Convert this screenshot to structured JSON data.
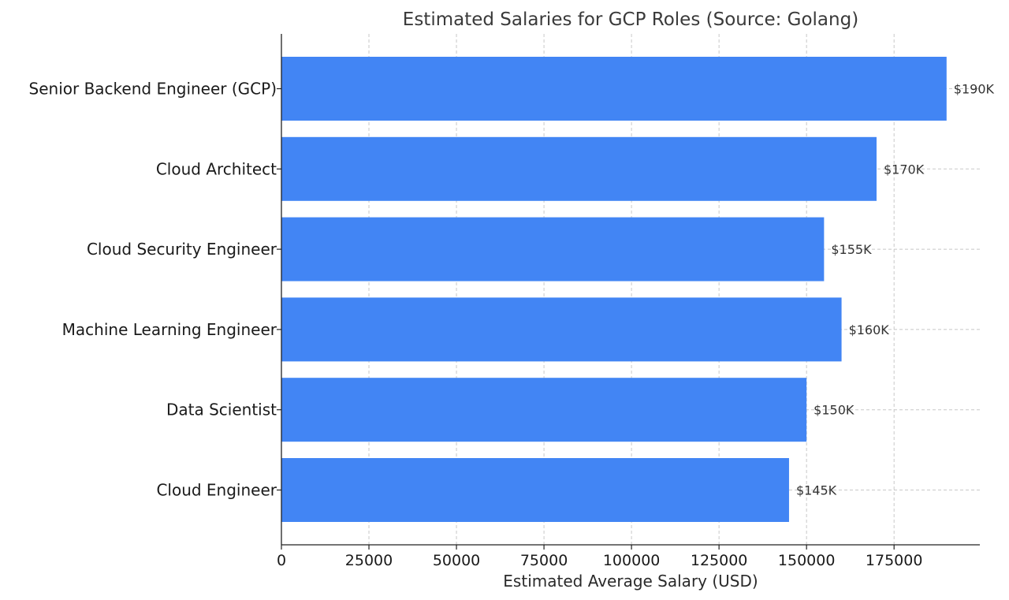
{
  "chart_data": {
    "type": "bar",
    "orientation": "horizontal",
    "title": "Estimated Salaries for GCP Roles (Source: Golang)",
    "xlabel": "Estimated Average Salary (USD)",
    "ylabel": "",
    "xlim": [
      0,
      199500
    ],
    "xticks": [
      0,
      25000,
      50000,
      75000,
      100000,
      125000,
      150000,
      175000
    ],
    "xtick_labels": [
      "0",
      "25000",
      "50000",
      "75000",
      "100000",
      "125000",
      "150000",
      "175000"
    ],
    "categories": [
      "Senior Backend Engineer (GCP)",
      "Cloud Architect",
      "Cloud Security Engineer",
      "Machine Learning Engineer",
      "Data Scientist",
      "Cloud Engineer"
    ],
    "values": [
      190000,
      170000,
      155000,
      160000,
      150000,
      145000
    ],
    "data_labels": [
      "$190K",
      "$170K",
      "$155K",
      "$160K",
      "$150K",
      "$145K"
    ],
    "bar_color": "#4285f4",
    "grid": true,
    "legend": false
  }
}
